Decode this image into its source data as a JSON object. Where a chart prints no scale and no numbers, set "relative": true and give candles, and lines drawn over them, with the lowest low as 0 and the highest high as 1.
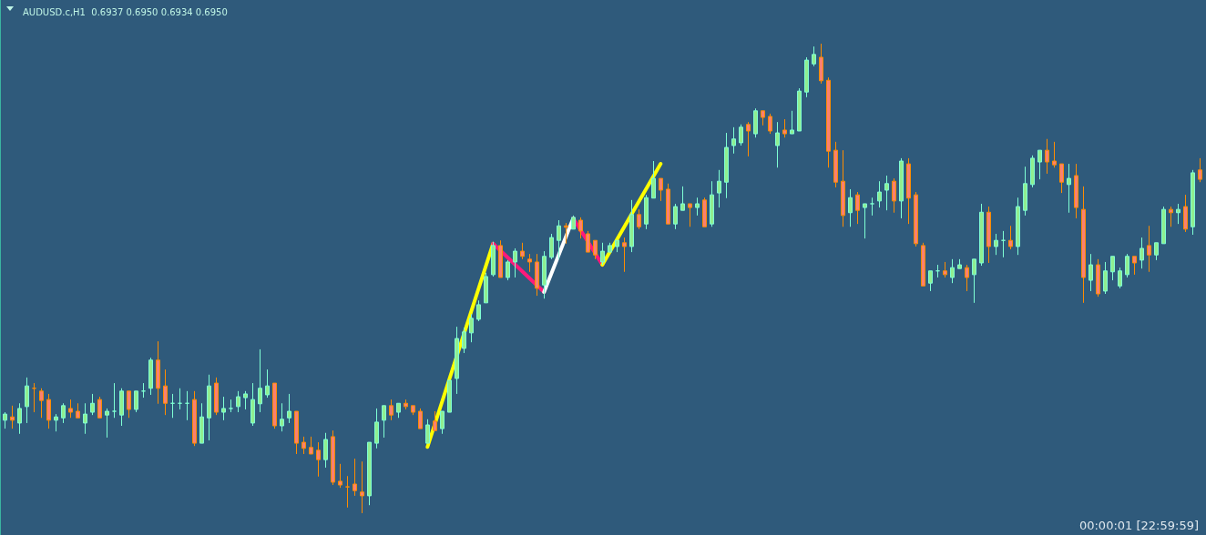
{
  "chart_data": {
    "type": "candlestick",
    "title": "AUDUSD.c,H1  0.6937 0.6950 0.6934 0.6950",
    "annotations": [
      "00:00:01 [22:59:59]"
    ],
    "relative": true,
    "grid": false,
    "categories": [
      null,
      null,
      null,
      null,
      null,
      null,
      null,
      null,
      null,
      null,
      null,
      null,
      null,
      null,
      null,
      null,
      null,
      null,
      null,
      null,
      null,
      null,
      null,
      null,
      null,
      null,
      null,
      null,
      null,
      null,
      null,
      null,
      null,
      null,
      null,
      null,
      null,
      null,
      null,
      null,
      null,
      null,
      null,
      null,
      null,
      null,
      null,
      null,
      null,
      null,
      null,
      null,
      null,
      null,
      null,
      null,
      null,
      null,
      null,
      null,
      null,
      null,
      null,
      null,
      null,
      null,
      null,
      null,
      null,
      null,
      null,
      null,
      null,
      null,
      null,
      null,
      null,
      null,
      null,
      null,
      null,
      null,
      null,
      null,
      null,
      null,
      null,
      null,
      null,
      null,
      null,
      null,
      null,
      null,
      null,
      null,
      null,
      null,
      null,
      null,
      null,
      null,
      null,
      null,
      null,
      null,
      null,
      null,
      null,
      null,
      null,
      null,
      null,
      null,
      null,
      null,
      null,
      null,
      null,
      null,
      null,
      null,
      null,
      null,
      null,
      null,
      null,
      null,
      null,
      null,
      null,
      null,
      null,
      null,
      null,
      null,
      null,
      null,
      null,
      null,
      null,
      null,
      null,
      null,
      null,
      null,
      null,
      null,
      null,
      null,
      null,
      null,
      null,
      null,
      null,
      null,
      null,
      null,
      null,
      null,
      null,
      null,
      null,
      null,
      null
    ],
    "ohlc": [
      [
        0.198,
        0.215,
        0.18,
        0.211
      ],
      [
        0.205,
        0.229,
        0.18,
        0.198
      ],
      [
        0.192,
        0.234,
        0.169,
        0.223
      ],
      [
        0.227,
        0.289,
        0.192,
        0.271
      ],
      [
        0.266,
        0.277,
        0.215,
        0.266
      ],
      [
        0.26,
        0.266,
        0.203,
        0.24
      ],
      [
        0.242,
        0.254,
        0.18,
        0.198
      ],
      [
        0.198,
        0.211,
        0.174,
        0.205
      ],
      [
        0.203,
        0.234,
        0.192,
        0.229
      ],
      [
        0.223,
        0.242,
        0.203,
        0.215
      ],
      [
        0.217,
        0.234,
        0.203,
        0.203
      ],
      [
        0.192,
        0.234,
        0.169,
        0.211
      ],
      [
        0.215,
        0.254,
        0.209,
        0.234
      ],
      [
        0.242,
        0.248,
        0.203,
        0.203
      ],
      [
        0.209,
        0.223,
        0.161,
        0.217
      ],
      [
        0.217,
        0.277,
        0.203,
        0.217
      ],
      [
        0.209,
        0.266,
        0.186,
        0.26
      ],
      [
        0.26,
        0.26,
        0.203,
        0.221
      ],
      [
        0.221,
        0.26,
        0.215,
        0.26
      ],
      [
        0.26,
        0.277,
        0.246,
        0.26
      ],
      [
        0.266,
        0.331,
        0.252,
        0.326
      ],
      [
        0.326,
        0.366,
        0.233,
        0.266
      ],
      [
        0.271,
        0.306,
        0.209,
        0.234
      ],
      [
        0.234,
        0.254,
        0.203,
        0.234
      ],
      [
        0.234,
        0.266,
        0.221,
        0.234
      ],
      [
        0.234,
        0.26,
        0.198,
        0.234
      ],
      [
        0.242,
        0.26,
        0.143,
        0.149
      ],
      [
        0.149,
        0.234,
        0.149,
        0.205
      ],
      [
        0.203,
        0.295,
        0.155,
        0.271
      ],
      [
        0.277,
        0.289,
        0.209,
        0.215
      ],
      [
        0.215,
        0.248,
        0.198,
        0.223
      ],
      [
        0.223,
        0.242,
        0.215,
        0.223
      ],
      [
        0.227,
        0.26,
        0.215,
        0.248
      ],
      [
        0.246,
        0.26,
        0.221,
        0.254
      ],
      [
        0.192,
        0.277,
        0.186,
        0.242
      ],
      [
        0.233,
        0.349,
        0.215,
        0.266
      ],
      [
        0.252,
        0.306,
        0.246,
        0.271
      ],
      [
        0.277,
        0.277,
        0.18,
        0.186
      ],
      [
        0.186,
        0.234,
        0.174,
        0.2
      ],
      [
        0.203,
        0.254,
        0.192,
        0.217
      ],
      [
        0.217,
        0.217,
        0.126,
        0.149
      ],
      [
        0.151,
        0.163,
        0.126,
        0.138
      ],
      [
        0.14,
        0.163,
        0.126,
        0.126
      ],
      [
        0.134,
        0.151,
        0.078,
        0.114
      ],
      [
        0.114,
        0.171,
        0.097,
        0.157
      ],
      [
        0.163,
        0.176,
        0.06,
        0.066
      ],
      [
        0.068,
        0.105,
        0.054,
        0.06
      ],
      [
        0.056,
        0.079,
        0.012,
        0.056
      ],
      [
        0.062,
        0.116,
        0.037,
        0.048
      ],
      [
        0.045,
        0.11,
        0,
        0.037
      ],
      [
        0.037,
        0.151,
        0.017,
        0.151
      ],
      [
        0.149,
        0.223,
        0.138,
        0.194
      ],
      [
        0.198,
        0.229,
        0.161,
        0.229
      ],
      [
        0.229,
        0.242,
        0.198,
        0.209
      ],
      [
        0.215,
        0.234,
        0.203,
        0.234
      ],
      [
        0.234,
        0.242,
        0.221,
        0.227
      ],
      [
        0.229,
        0.229,
        0.209,
        0.215
      ],
      [
        0.217,
        0.223,
        0.18,
        0.18
      ],
      [
        0.149,
        0.2,
        0.149,
        0.188
      ],
      [
        0.196,
        0.217,
        0.176,
        0.176
      ],
      [
        0.18,
        0.217,
        0.169,
        0.217
      ],
      [
        0.215,
        0.283,
        0.215,
        0.283
      ],
      [
        0.287,
        0.397,
        0.254,
        0.372
      ],
      [
        0.351,
        0.395,
        0.341,
        0.386
      ],
      [
        0.384,
        0.424,
        0.364,
        0.415
      ],
      [
        0.413,
        0.453,
        0.409,
        0.444
      ],
      [
        0.448,
        0.512,
        0.448,
        0.504
      ],
      [
        0.508,
        0.578,
        0.504,
        0.57
      ],
      [
        0.57,
        0.581,
        0.502,
        0.502
      ],
      [
        0.502,
        0.539,
        0.496,
        0.535
      ],
      [
        0.535,
        0.564,
        0.502,
        0.558
      ],
      [
        0.558,
        0.576,
        0.541,
        0.547
      ],
      [
        0.541,
        0.552,
        0.514,
        0.535
      ],
      [
        0.535,
        0.552,
        0.463,
        0.479
      ],
      [
        0.486,
        0.558,
        0.457,
        0.547
      ],
      [
        0.545,
        0.595,
        0.541,
        0.587
      ],
      [
        0.581,
        0.624,
        0.541,
        0.612
      ],
      [
        0.612,
        0.618,
        0.574,
        0.609
      ],
      [
        0.605,
        0.634,
        0.605,
        0.63
      ],
      [
        0.624,
        0.63,
        0.585,
        0.601
      ],
      [
        0.595,
        0.601,
        0.556,
        0.556
      ],
      [
        0.581,
        0.581,
        0.541,
        0.55
      ],
      [
        0.535,
        0.576,
        0.529,
        0.558
      ],
      [
        0.556,
        0.576,
        0.556,
        0.57
      ],
      [
        0.568,
        0.581,
        0.556,
        0.581
      ],
      [
        0.576,
        0.587,
        0.514,
        0.568
      ],
      [
        0.568,
        0.667,
        0.556,
        0.636
      ],
      [
        0.636,
        0.647,
        0.605,
        0.61
      ],
      [
        0.616,
        0.678,
        0.605,
        0.672
      ],
      [
        0.671,
        0.75,
        0.671,
        0.713
      ],
      [
        0.713,
        0.713,
        0.665,
        0.688
      ],
      [
        0.69,
        0.702,
        0.616,
        0.616
      ],
      [
        0.616,
        0.659,
        0.605,
        0.653
      ],
      [
        0.645,
        0.696,
        0.645,
        0.659
      ],
      [
        0.659,
        0.659,
        0.61,
        0.651
      ],
      [
        0.651,
        0.672,
        0.634,
        0.659
      ],
      [
        0.667,
        0.672,
        0.61,
        0.61
      ],
      [
        0.616,
        0.707,
        0.61,
        0.678
      ],
      [
        0.682,
        0.731,
        0.651,
        0.707
      ],
      [
        0.705,
        0.81,
        0.671,
        0.779
      ],
      [
        0.783,
        0.822,
        0.766,
        0.797
      ],
      [
        0.789,
        0.828,
        0.783,
        0.822
      ],
      [
        0.828,
        0.833,
        0.76,
        0.814
      ],
      [
        0.808,
        0.862,
        0.8,
        0.857
      ],
      [
        0.857,
        0.857,
        0.826,
        0.843
      ],
      [
        0.845,
        0.851,
        0.808,
        0.814
      ],
      [
        0.783,
        0.833,
        0.736,
        0.81
      ],
      [
        0.816,
        0.839,
        0.8,
        0.808
      ],
      [
        0.808,
        0.857,
        0.808,
        0.816
      ],
      [
        0.814,
        0.905,
        0.814,
        0.899
      ],
      [
        0.897,
        0.971,
        0.886,
        0.965
      ],
      [
        0.957,
        0.994,
        0.952,
        0.977
      ],
      [
        0.971,
        1,
        0.915,
        0.921
      ],
      [
        0.922,
        0.928,
        0.736,
        0.771
      ],
      [
        0.773,
        0.791,
        0.694,
        0.705
      ],
      [
        0.707,
        0.773,
        0.61,
        0.634
      ],
      [
        0.64,
        0.69,
        0.61,
        0.672
      ],
      [
        0.678,
        0.684,
        0.616,
        0.645
      ],
      [
        0.651,
        0.659,
        0.585,
        0.659
      ],
      [
        0.659,
        0.672,
        0.634,
        0.659
      ],
      [
        0.665,
        0.707,
        0.651,
        0.684
      ],
      [
        0.688,
        0.719,
        0.645,
        0.702
      ],
      [
        0.707,
        0.713,
        0.64,
        0.665
      ],
      [
        0.665,
        0.756,
        0.628,
        0.75
      ],
      [
        0.744,
        0.756,
        0.616,
        0.671
      ],
      [
        0.678,
        0.684,
        0.568,
        0.574
      ],
      [
        0.57,
        0.576,
        0.484,
        0.484
      ],
      [
        0.49,
        0.516,
        0.473,
        0.516
      ],
      [
        0.516,
        0.529,
        0.502,
        0.516
      ],
      [
        0.516,
        0.535,
        0.502,
        0.508
      ],
      [
        0.502,
        0.541,
        0.49,
        0.523
      ],
      [
        0.521,
        0.541,
        0.521,
        0.529
      ],
      [
        0.523,
        0.529,
        0.473,
        0.502
      ],
      [
        0.508,
        0.541,
        0.448,
        0.541
      ],
      [
        0.533,
        0.659,
        0.527,
        0.641
      ],
      [
        0.641,
        0.653,
        0.533,
        0.568
      ],
      [
        0.568,
        0.595,
        0.55,
        0.581
      ],
      [
        0.581,
        0.601,
        0.545,
        0.581
      ],
      [
        0.581,
        0.612,
        0.562,
        0.568
      ],
      [
        0.568,
        0.672,
        0.55,
        0.653
      ],
      [
        0.645,
        0.738,
        0.634,
        0.702
      ],
      [
        0.7,
        0.762,
        0.694,
        0.756
      ],
      [
        0.748,
        0.773,
        0.711,
        0.773
      ],
      [
        0.773,
        0.797,
        0.723,
        0.748
      ],
      [
        0.75,
        0.791,
        0.736,
        0.742
      ],
      [
        0.744,
        0.744,
        0.682,
        0.705
      ],
      [
        0.7,
        0.744,
        0.64,
        0.713
      ],
      [
        0.719,
        0.744,
        0.628,
        0.651
      ],
      [
        0.647,
        0.696,
        0.448,
        0.502
      ],
      [
        0.496,
        0.552,
        0.473,
        0.529
      ],
      [
        0.529,
        0.541,
        0.461,
        0.467
      ],
      [
        0.473,
        0.535,
        0.467,
        0.516
      ],
      [
        0.514,
        0.547,
        0.496,
        0.547
      ],
      [
        0.484,
        0.523,
        0.479,
        0.516
      ],
      [
        0.508,
        0.552,
        0.502,
        0.547
      ],
      [
        0.547,
        0.547,
        0.508,
        0.533
      ],
      [
        0.539,
        0.587,
        0.521,
        0.564
      ],
      [
        0.57,
        0.612,
        0.514,
        0.55
      ],
      [
        0.55,
        0.576,
        0.539,
        0.576
      ],
      [
        0.574,
        0.653,
        0.574,
        0.647
      ],
      [
        0.647,
        0.653,
        0.61,
        0.64
      ],
      [
        0.64,
        0.659,
        0.616,
        0.647
      ],
      [
        0.653,
        0.678,
        0.599,
        0.605
      ],
      [
        0.61,
        0.731,
        0.593,
        0.725
      ],
      [
        0.731,
        0.756,
        0.705,
        0.711
      ]
    ],
    "series": [
      {
        "type": "line",
        "color": "#ffff00",
        "values": [
          null,
          null,
          null,
          null,
          null,
          null,
          null,
          null,
          null,
          null,
          null,
          null,
          null,
          null,
          null,
          null,
          null,
          null,
          null,
          null,
          null,
          null,
          null,
          null,
          null,
          null,
          null,
          null,
          null,
          null,
          null,
          null,
          null,
          null,
          null,
          null,
          null,
          null,
          null,
          null,
          null,
          null,
          null,
          null,
          null,
          null,
          null,
          null,
          null,
          null,
          null,
          null,
          null,
          null,
          null,
          null,
          null,
          null,
          0.141,
          null,
          null,
          null,
          null,
          null,
          null,
          null,
          null,
          0.574,
          null,
          null,
          null,
          null,
          null,
          null,
          null,
          null,
          null,
          null,
          null,
          null,
          null,
          null,
          null,
          null,
          null,
          null,
          null,
          null,
          null,
          null,
          null,
          null,
          null,
          null,
          null,
          null,
          null,
          null,
          null,
          null,
          null,
          null,
          null,
          null,
          null,
          null,
          null,
          null,
          null,
          null,
          null,
          null,
          null,
          null,
          null,
          null,
          null,
          null,
          null,
          null,
          null,
          null,
          null,
          null,
          null,
          null,
          null,
          null,
          null,
          null,
          null,
          null,
          null,
          null,
          null,
          null,
          null,
          null,
          null,
          null,
          null,
          null,
          null,
          null,
          null,
          null,
          null,
          null,
          null,
          null,
          null,
          null,
          null,
          null,
          null,
          null,
          null,
          null,
          null,
          null,
          null,
          null,
          null,
          null,
          null
        ]
      },
      {
        "type": "line",
        "color": "#ff1a7a",
        "values": [
          null,
          null,
          null,
          null,
          null,
          null,
          null,
          null,
          null,
          null,
          null,
          null,
          null,
          null,
          null,
          null,
          null,
          null,
          null,
          null,
          null,
          null,
          null,
          null,
          null,
          null,
          null,
          null,
          null,
          null,
          null,
          null,
          null,
          null,
          null,
          null,
          null,
          null,
          null,
          null,
          null,
          null,
          null,
          null,
          null,
          null,
          null,
          null,
          null,
          null,
          null,
          null,
          null,
          null,
          null,
          null,
          null,
          null,
          null,
          null,
          null,
          null,
          null,
          null,
          null,
          null,
          null,
          0.574,
          null,
          null,
          null,
          null,
          null,
          null,
          0.471,
          null,
          null,
          null,
          null,
          null,
          null,
          null,
          null,
          null,
          null,
          null,
          null,
          null,
          null,
          null,
          null,
          null,
          null,
          null,
          null,
          null,
          null,
          null,
          null,
          null,
          null,
          null,
          null,
          null,
          null,
          null,
          null,
          null,
          null,
          null,
          null,
          null,
          null,
          null,
          null,
          null,
          null,
          null,
          null,
          null,
          null,
          null,
          null,
          null,
          null,
          null,
          null,
          null,
          null,
          null,
          null,
          null,
          null,
          null,
          null,
          null,
          null,
          null,
          null,
          null,
          null,
          null,
          null,
          null,
          null,
          null,
          null,
          null,
          null,
          null,
          null,
          null,
          null,
          null,
          null,
          null,
          null,
          null,
          null,
          null,
          null,
          null,
          null,
          null,
          null
        ]
      },
      {
        "type": "line",
        "color": "#ffffff",
        "values": [
          null,
          null,
          null,
          null,
          null,
          null,
          null,
          null,
          null,
          null,
          null,
          null,
          null,
          null,
          null,
          null,
          null,
          null,
          null,
          null,
          null,
          null,
          null,
          null,
          null,
          null,
          null,
          null,
          null,
          null,
          null,
          null,
          null,
          null,
          null,
          null,
          null,
          null,
          null,
          null,
          null,
          null,
          null,
          null,
          null,
          null,
          null,
          null,
          null,
          null,
          null,
          null,
          null,
          null,
          null,
          null,
          null,
          null,
          null,
          null,
          null,
          null,
          null,
          null,
          null,
          null,
          null,
          null,
          null,
          null,
          null,
          null,
          null,
          null,
          0.471,
          null,
          null,
          null,
          0.628,
          null,
          null,
          null,
          null,
          null,
          null,
          null,
          null,
          null,
          null,
          null,
          null,
          null,
          null,
          null,
          null,
          null,
          null,
          null,
          null,
          null,
          null,
          null,
          null,
          null,
          null,
          null,
          null,
          null,
          null,
          null,
          null,
          null,
          null,
          null,
          null,
          null,
          null,
          null,
          null,
          null,
          null,
          null,
          null,
          null,
          null,
          null,
          null,
          null,
          null,
          null,
          null,
          null,
          null,
          null,
          null,
          null,
          null,
          null,
          null,
          null,
          null,
          null,
          null,
          null,
          null,
          null,
          null,
          null,
          null,
          null,
          null,
          null,
          null,
          null,
          null,
          null,
          null,
          null,
          null,
          null,
          null,
          null,
          null,
          null,
          null
        ]
      },
      {
        "type": "line",
        "color": "#ff1a7a",
        "values": [
          null,
          null,
          null,
          null,
          null,
          null,
          null,
          null,
          null,
          null,
          null,
          null,
          null,
          null,
          null,
          null,
          null,
          null,
          null,
          null,
          null,
          null,
          null,
          null,
          null,
          null,
          null,
          null,
          null,
          null,
          null,
          null,
          null,
          null,
          null,
          null,
          null,
          null,
          null,
          null,
          null,
          null,
          null,
          null,
          null,
          null,
          null,
          null,
          null,
          null,
          null,
          null,
          null,
          null,
          null,
          null,
          null,
          null,
          null,
          null,
          null,
          null,
          null,
          null,
          null,
          null,
          null,
          null,
          null,
          null,
          null,
          null,
          null,
          null,
          null,
          null,
          null,
          null,
          0.628,
          null,
          null,
          null,
          0.529,
          null,
          null,
          null,
          null,
          null,
          null,
          null,
          null,
          null,
          null,
          null,
          null,
          null,
          null,
          null,
          null,
          null,
          null,
          null,
          null,
          null,
          null,
          null,
          null,
          null,
          null,
          null,
          null,
          null,
          null,
          null,
          null,
          null,
          null,
          null,
          null,
          null,
          null,
          null,
          null,
          null,
          null,
          null,
          null,
          null,
          null,
          null,
          null,
          null,
          null,
          null,
          null,
          null,
          null,
          null,
          null,
          null,
          null,
          null,
          null,
          null,
          null,
          null,
          null,
          null,
          null,
          null,
          null,
          null,
          null,
          null,
          null,
          null,
          null,
          null,
          null,
          null,
          null,
          null,
          null,
          null,
          null
        ]
      },
      {
        "type": "line",
        "color": "#ffff00",
        "values": [
          null,
          null,
          null,
          null,
          null,
          null,
          null,
          null,
          null,
          null,
          null,
          null,
          null,
          null,
          null,
          null,
          null,
          null,
          null,
          null,
          null,
          null,
          null,
          null,
          null,
          null,
          null,
          null,
          null,
          null,
          null,
          null,
          null,
          null,
          null,
          null,
          null,
          null,
          null,
          null,
          null,
          null,
          null,
          null,
          null,
          null,
          null,
          null,
          null,
          null,
          null,
          null,
          null,
          null,
          null,
          null,
          null,
          null,
          null,
          null,
          null,
          null,
          null,
          null,
          null,
          null,
          null,
          null,
          null,
          null,
          null,
          null,
          null,
          null,
          null,
          null,
          null,
          null,
          null,
          null,
          null,
          null,
          0.529,
          null,
          null,
          null,
          null,
          null,
          null,
          null,
          0.744,
          null,
          null,
          null,
          null,
          null,
          null,
          null,
          null,
          null,
          null,
          null,
          null,
          null,
          null,
          null,
          null,
          null,
          null,
          null,
          null,
          null,
          null,
          null,
          null,
          null,
          null,
          null,
          null,
          null,
          null,
          null,
          null,
          null,
          null,
          null,
          null,
          null,
          null,
          null,
          null,
          null,
          null,
          null,
          null,
          null,
          null,
          null,
          null,
          null,
          null,
          null,
          null,
          null,
          null,
          null,
          null,
          null,
          null,
          null,
          null,
          null,
          null,
          null,
          null,
          null,
          null,
          null,
          null,
          null,
          null,
          null,
          null,
          null,
          null
        ]
      }
    ]
  }
}
